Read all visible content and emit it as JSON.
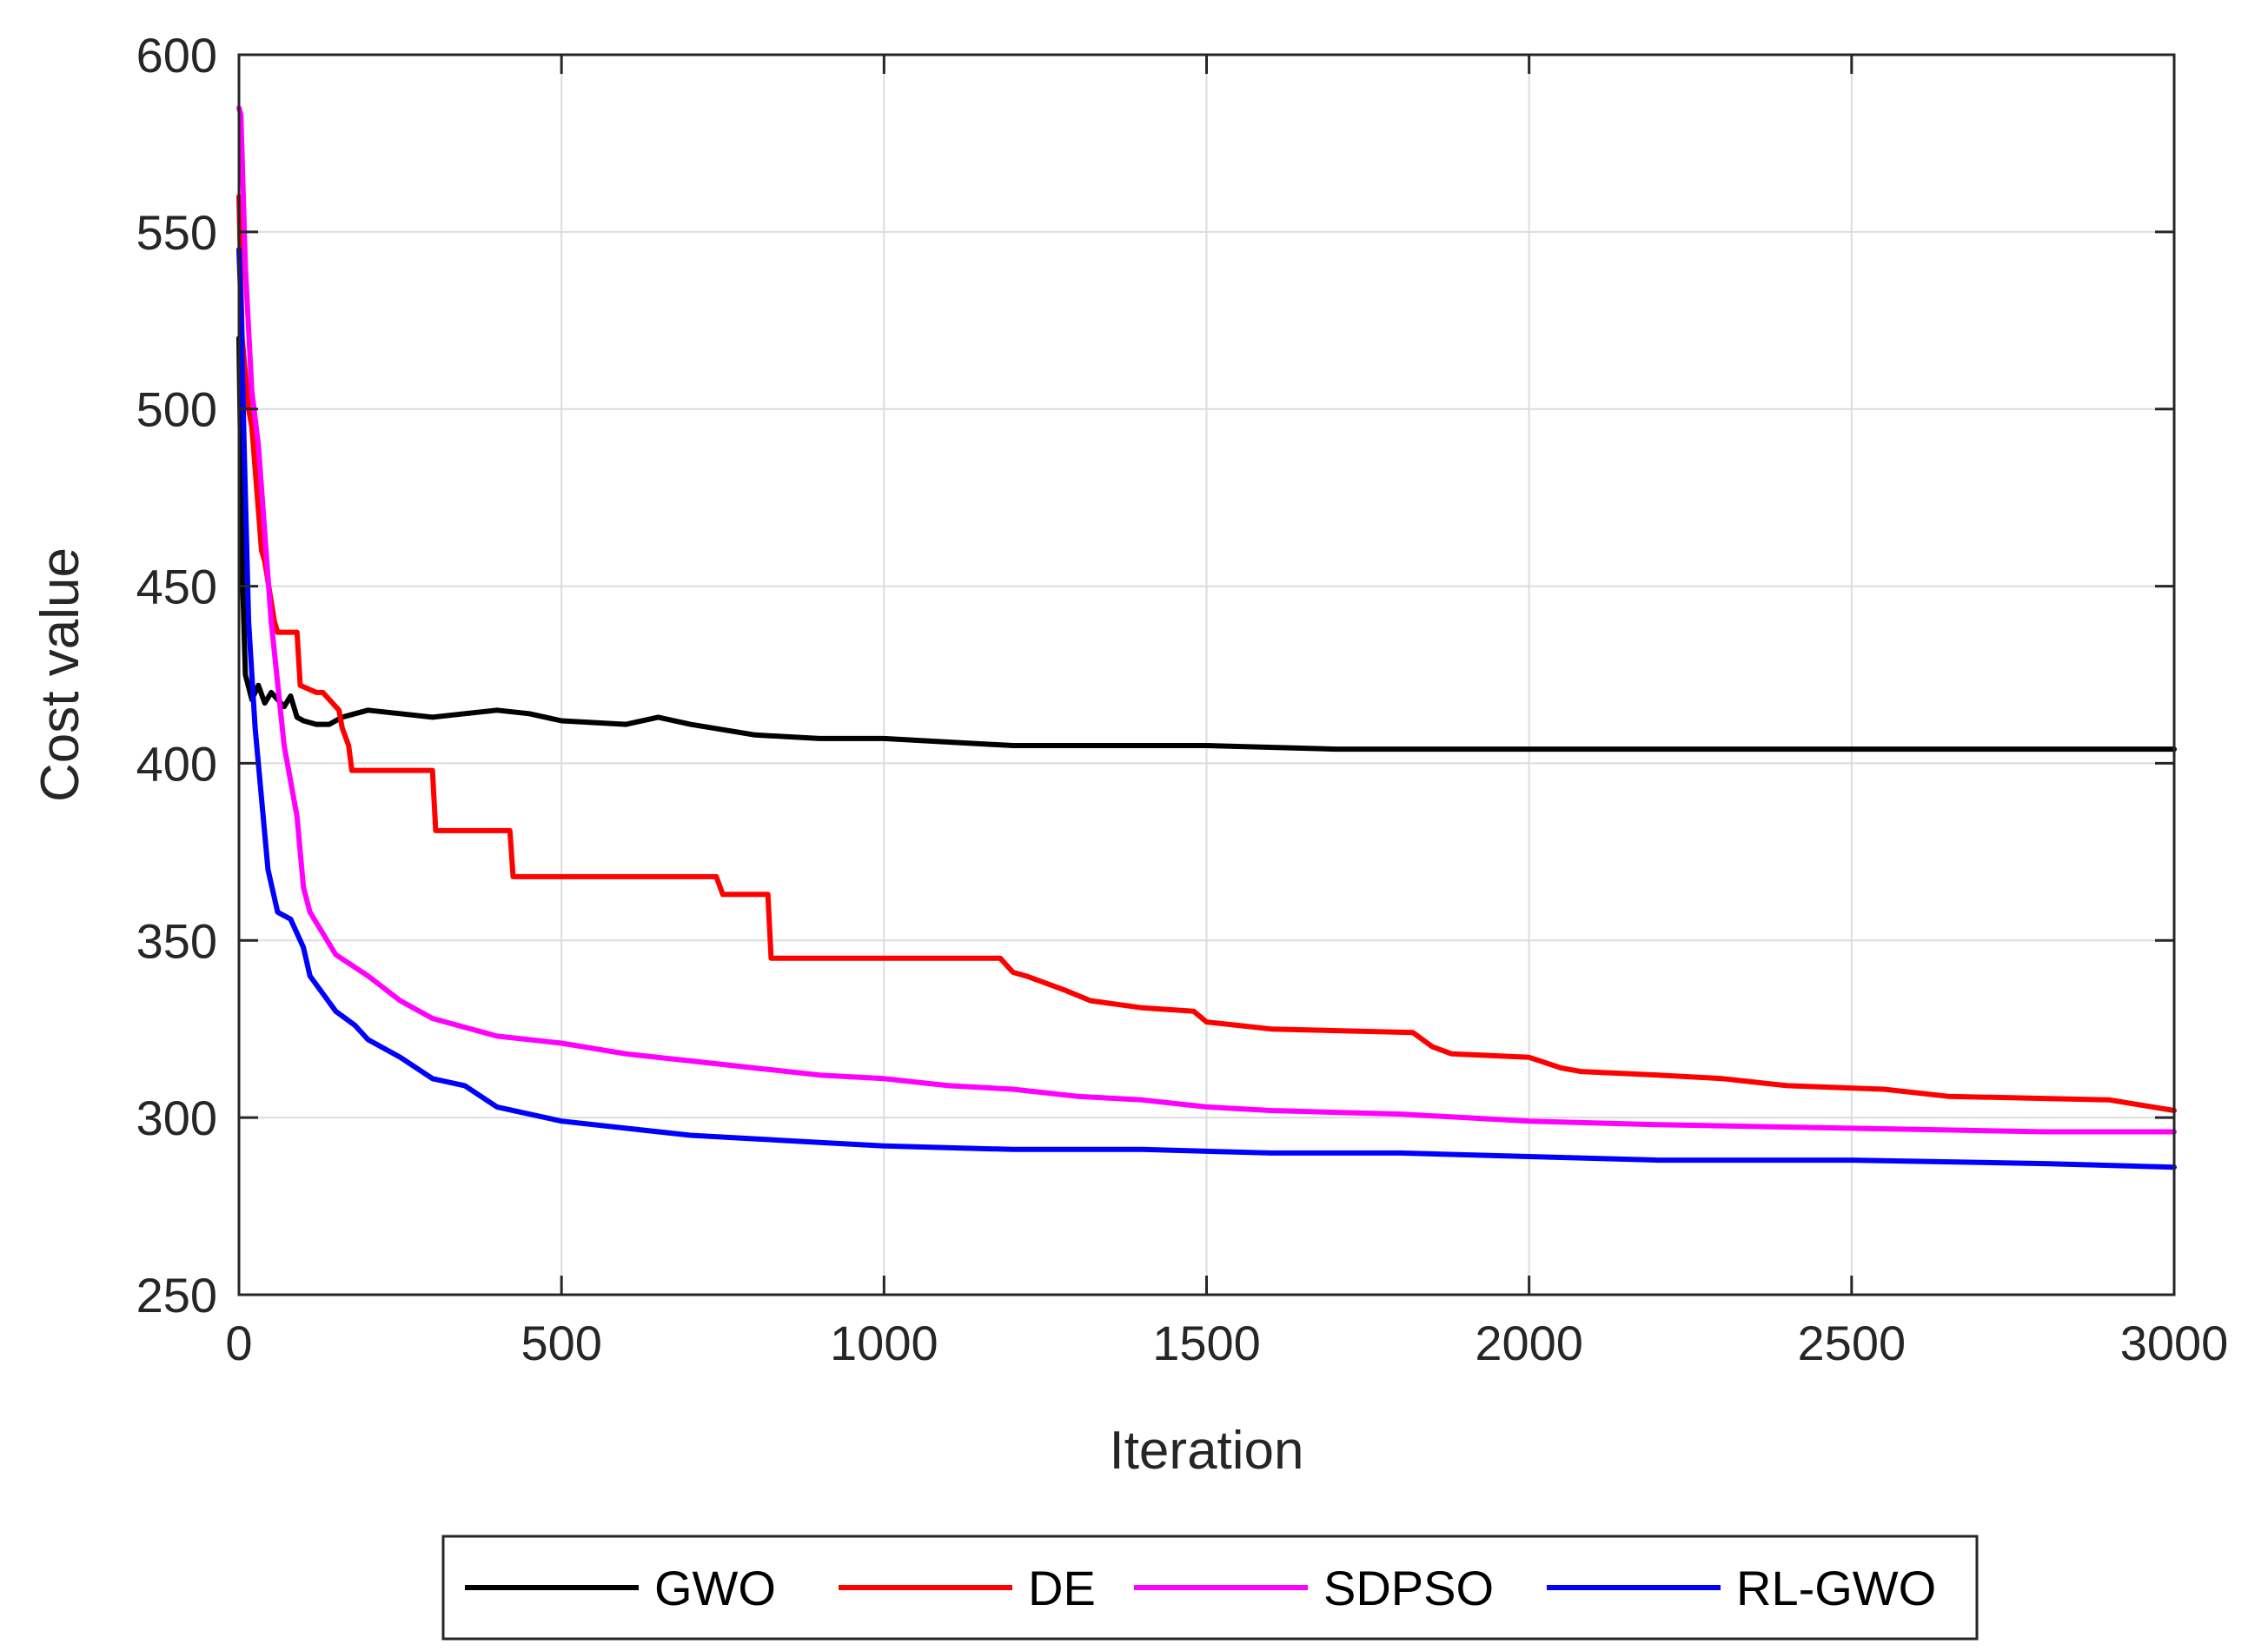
{
  "chart_data": {
    "type": "line",
    "title": "",
    "xlabel": "Iteration",
    "ylabel": "Cost value",
    "xlim": [
      0,
      3000
    ],
    "ylim": [
      250,
      600
    ],
    "xticks": [
      0,
      500,
      1000,
      1500,
      2000,
      2500,
      3000
    ],
    "yticks": [
      250,
      300,
      350,
      400,
      450,
      500,
      550,
      600
    ],
    "grid": true,
    "legend_position": "bottom-outside",
    "series": [
      {
        "name": "GWO",
        "color": "#000000",
        "x": [
          0,
          5,
          10,
          20,
          30,
          40,
          50,
          60,
          70,
          80,
          90,
          100,
          120,
          140,
          160,
          180,
          200,
          250,
          300,
          350,
          400,
          450,
          500,
          600,
          650,
          700,
          800,
          900,
          1000,
          1100,
          1200,
          1300,
          1500,
          1700,
          2000,
          2500,
          3000
        ],
        "y": [
          520,
          455,
          425,
          418,
          422,
          417,
          420,
          418,
          416,
          419,
          413,
          412,
          411,
          411,
          413,
          414,
          415,
          414,
          413,
          414,
          415,
          414,
          412,
          411,
          413,
          411,
          408,
          407,
          407,
          406,
          405,
          405,
          405,
          404,
          404,
          404,
          404
        ]
      },
      {
        "name": "DE",
        "color": "#ff0000",
        "x": [
          0,
          5,
          15,
          20,
          35,
          40,
          55,
          60,
          90,
          95,
          120,
          130,
          155,
          160,
          170,
          175,
          300,
          305,
          420,
          425,
          740,
          750,
          820,
          825,
          1180,
          1200,
          1220,
          1250,
          1280,
          1320,
          1360,
          1400,
          1480,
          1500,
          1550,
          1600,
          1820,
          1850,
          1880,
          2000,
          2050,
          2080,
          2200,
          2300,
          2350,
          2400,
          2550,
          2650,
          2900,
          3000
        ],
        "y": [
          560,
          520,
          500,
          495,
          460,
          457,
          440,
          437,
          437,
          422,
          420,
          420,
          415,
          410,
          405,
          398,
          398,
          381,
          381,
          368,
          368,
          363,
          363,
          345,
          345,
          341,
          340,
          338,
          336,
          333,
          332,
          331,
          330,
          327,
          326,
          325,
          324,
          320,
          318,
          317,
          314,
          313,
          312,
          311,
          310,
          309,
          308,
          306,
          305,
          302
        ]
      },
      {
        "name": "SDPSO",
        "color": "#ff00ff",
        "x": [
          0,
          3,
          10,
          20,
          30,
          50,
          70,
          90,
          100,
          110,
          130,
          150,
          200,
          250,
          300,
          400,
          500,
          600,
          700,
          800,
          900,
          1000,
          1100,
          1200,
          1300,
          1400,
          1500,
          1600,
          1800,
          2000,
          2200,
          2500,
          2800,
          3000
        ],
        "y": [
          585,
          583,
          540,
          505,
          490,
          440,
          405,
          385,
          365,
          358,
          352,
          346,
          340,
          333,
          328,
          323,
          321,
          318,
          316,
          314,
          312,
          311,
          309,
          308,
          306,
          305,
          303,
          302,
          301,
          299,
          298,
          297,
          296,
          296
        ]
      },
      {
        "name": "RL-GWO",
        "color": "#0000ff",
        "x": [
          0,
          3,
          8,
          15,
          25,
          35,
          45,
          60,
          80,
          100,
          110,
          130,
          150,
          180,
          200,
          250,
          300,
          350,
          400,
          450,
          500,
          600,
          700,
          800,
          900,
          1000,
          1200,
          1400,
          1600,
          1800,
          2000,
          2200,
          2500,
          2800,
          3000
        ],
        "y": [
          545,
          530,
          490,
          440,
          410,
          390,
          370,
          358,
          356,
          348,
          340,
          335,
          330,
          326,
          322,
          317,
          311,
          309,
          303,
          301,
          299,
          297,
          295,
          294,
          293,
          292,
          291,
          291,
          290,
          290,
          289,
          288,
          288,
          287,
          286
        ]
      }
    ]
  }
}
